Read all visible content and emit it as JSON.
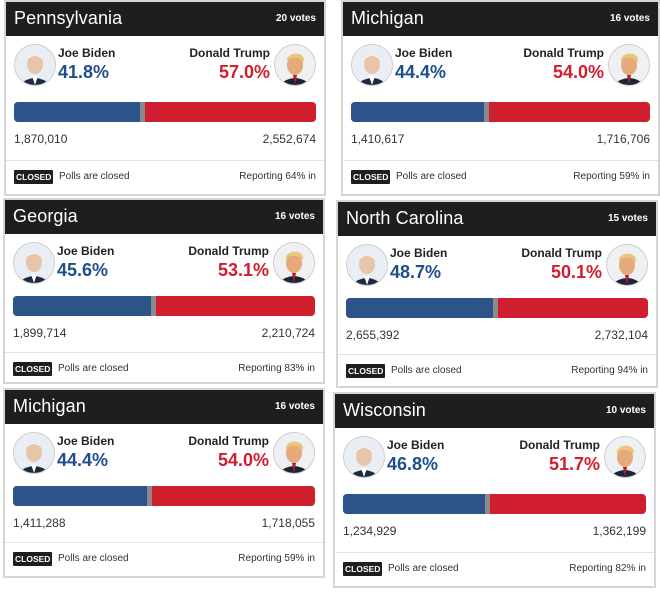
{
  "cards": [
    {
      "state": "Pennsylvania",
      "votes": "20 votes",
      "biden_name": "Joe Biden",
      "biden_pct": "41.8%",
      "trump_name": "Donald Trump",
      "trump_pct": "57.0%",
      "biden_count": "1,870,010",
      "trump_count": "2,552,674",
      "badge": "CLOSED",
      "polls": "Polls are closed",
      "reporting": "Reporting 64% in",
      "biden_share": 0.418,
      "trump_share": 0.57
    },
    {
      "state": "Michigan",
      "votes": "16 votes",
      "biden_name": "Joe Biden",
      "biden_pct": "44.4%",
      "trump_name": "Donald Trump",
      "trump_pct": "54.0%",
      "biden_count": "1,410,617",
      "trump_count": "1,716,706",
      "badge": "CLOSED",
      "polls": "Polls are closed",
      "reporting": "Reporting 59% in",
      "biden_share": 0.444,
      "trump_share": 0.54
    },
    {
      "state": "Georgia",
      "votes": "16 votes",
      "biden_name": "Joe Biden",
      "biden_pct": "45.6%",
      "trump_name": "Donald Trump",
      "trump_pct": "53.1%",
      "biden_count": "1,899,714",
      "trump_count": "2,210,724",
      "badge": "CLOSED",
      "polls": "Polls are closed",
      "reporting": "Reporting 83% in",
      "biden_share": 0.456,
      "trump_share": 0.531
    },
    {
      "state": "North Carolina",
      "votes": "15 votes",
      "biden_name": "Joe Biden",
      "biden_pct": "48.7%",
      "trump_name": "Donald Trump",
      "trump_pct": "50.1%",
      "biden_count": "2,655,392",
      "trump_count": "2,732,104",
      "badge": "CLOSED",
      "polls": "Polls are closed",
      "reporting": "Reporting 94% in",
      "biden_share": 0.487,
      "trump_share": 0.501
    },
    {
      "state": "Michigan",
      "votes": "16 votes",
      "biden_name": "Joe Biden",
      "biden_pct": "44.4%",
      "trump_name": "Donald Trump",
      "trump_pct": "54.0%",
      "biden_count": "1,411,288",
      "trump_count": "1,718,055",
      "badge": "CLOSED",
      "polls": "Polls are closed",
      "reporting": "Reporting 59% in",
      "biden_share": 0.444,
      "trump_share": 0.54
    },
    {
      "state": "Wisconsin",
      "votes": "10 votes",
      "biden_name": "Joe Biden",
      "biden_pct": "46.8%",
      "trump_name": "Donald Trump",
      "trump_pct": "51.7%",
      "biden_count": "1,234,929",
      "trump_count": "1,362,199",
      "badge": "CLOSED",
      "polls": "Polls are closed",
      "reporting": "Reporting 82% in",
      "biden_share": 0.468,
      "trump_share": 0.517
    }
  ],
  "colors": {
    "biden_blue": "#2d5489",
    "trump_red": "#cf1e2e",
    "header_bg": "#1e1e1e"
  },
  "icons": {
    "biden_avatar": "biden-avatar-icon",
    "trump_avatar": "trump-avatar-icon"
  }
}
